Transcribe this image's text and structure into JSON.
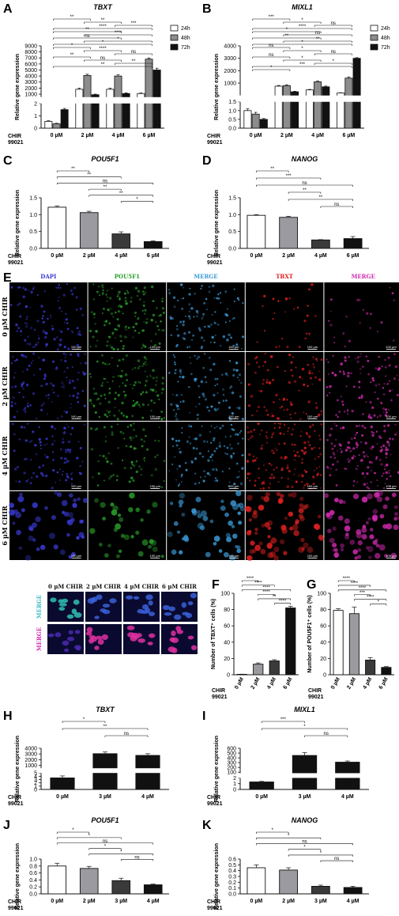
{
  "panel_letters": [
    "A",
    "B",
    "C",
    "D",
    "E",
    "F",
    "G",
    "H",
    "I",
    "J",
    "K"
  ],
  "microscopy": {
    "channels": [
      {
        "name": "DAPI",
        "color": "#3a3ad8"
      },
      {
        "name": "POU5F1",
        "color": "#2aa02a"
      },
      {
        "name": "MERGE",
        "color": "#3a9ad8"
      },
      {
        "name": "TBXT",
        "color": "#e02020"
      },
      {
        "name": "MERGE",
        "color": "#d02ab0"
      }
    ],
    "rows": [
      "0 µM CHIR",
      "2 µM CHIR",
      "4 µM CHIR",
      "6 µM CHIR"
    ],
    "scale_bar": "100 µm",
    "zoom_columns": [
      "0 µM CHIR",
      "2 µM CHIR",
      "4 µM CHIR",
      "6 µM CHIR"
    ],
    "zoom_rows": [
      {
        "name": "MERGE",
        "color": "#3ab8c8"
      },
      {
        "name": "MERGE",
        "color": "#d02ab0"
      }
    ]
  },
  "chart_data": [
    {
      "panel": "A",
      "type": "bar",
      "title": "TBXT",
      "ylabel": "Relative gene expression",
      "chir_label": [
        "CHIR",
        "99021"
      ],
      "categories": [
        "0 µM",
        "2 µM",
        "4 µM",
        "6 µM"
      ],
      "legend": [
        "24h",
        "48h",
        "72h"
      ],
      "series_colors": [
        "#ffffff",
        "#8c8c8c",
        "#111111"
      ],
      "series": [
        {
          "name": "24h",
          "values": [
            0.55,
            1800,
            1800,
            1100
          ],
          "errors": [
            0.05,
            200,
            200,
            100
          ]
        },
        {
          "name": "48h",
          "values": [
            0.35,
            4100,
            4000,
            6800
          ],
          "errors": [
            0.05,
            200,
            200,
            200
          ]
        },
        {
          "name": "72h",
          "values": [
            1.5,
            900,
            1100,
            5000
          ],
          "errors": [
            0.1,
            100,
            100,
            300
          ]
        }
      ],
      "ylim": [
        0,
        9000
      ],
      "axis_break": {
        "low": [
          0,
          2
        ],
        "low_ticks": [
          0,
          1,
          2
        ],
        "high": [
          500,
          9000
        ],
        "high_ticks": [
          1000,
          2000,
          3000,
          4000,
          5000,
          6000,
          7000,
          8000,
          9000
        ]
      },
      "significance": [
        "**",
        "**",
        "***",
        "****",
        "**",
        "****",
        "ns",
        "*",
        "*",
        "*",
        "****",
        "ns",
        "**",
        "ns",
        "**",
        "**"
      ]
    },
    {
      "panel": "B",
      "type": "bar",
      "title": "MIXL1",
      "ylabel": "Relative gene expression",
      "chir_label": [
        "CHIR",
        "99021"
      ],
      "categories": [
        "0 µM",
        "2 µM",
        "4 µM",
        "6 µM"
      ],
      "legend": [
        "24h",
        "48h",
        "72h"
      ],
      "series_colors": [
        "#ffffff",
        "#8c8c8c",
        "#111111"
      ],
      "series": [
        {
          "name": "24h",
          "values": [
            1.0,
            750,
            450,
            200
          ],
          "errors": [
            0.1,
            60,
            40,
            20
          ]
        },
        {
          "name": "48h",
          "values": [
            0.8,
            800,
            1100,
            1400
          ],
          "errors": [
            0.1,
            60,
            80,
            100
          ]
        },
        {
          "name": "72h",
          "values": [
            0.5,
            300,
            700,
            3000
          ],
          "errors": [
            0.05,
            40,
            60,
            50
          ]
        }
      ],
      "ylim": [
        0,
        4000
      ],
      "axis_break": {
        "low": [
          0,
          1.5
        ],
        "low_ticks": [
          0.0,
          0.5,
          1.0,
          1.5
        ],
        "high": [
          0,
          4000
        ],
        "high_ticks": [
          1000,
          2000,
          3000,
          4000
        ]
      },
      "significance": [
        "***",
        "*",
        "ns",
        "****",
        "*",
        "ns",
        "**",
        "**",
        "*",
        "ns",
        "*",
        "ns",
        "ns",
        "*",
        "*",
        "***",
        "*"
      ]
    },
    {
      "panel": "C",
      "type": "bar",
      "title": "POU5F1",
      "ylabel": "Relative gene expression",
      "chir_label": [
        "CHIR",
        "99021"
      ],
      "categories": [
        "0 µM",
        "2 µM",
        "4 µM",
        "6 µM"
      ],
      "values": [
        1.22,
        1.06,
        0.43,
        0.2
      ],
      "errors": [
        0.04,
        0.04,
        0.06,
        0.02
      ],
      "bar_colors": [
        "#ffffff",
        "#9a9aa0",
        "#3a3a3a",
        "#111111"
      ],
      "ylim": [
        0,
        1.5
      ],
      "yticks": [
        0.0,
        0.5,
        1.0,
        1.5
      ],
      "significance": [
        "**",
        "**",
        "ns",
        "**",
        "**",
        "*"
      ]
    },
    {
      "panel": "D",
      "type": "bar",
      "title": "NANOG",
      "ylabel": "Relative gene expression",
      "chir_label": [
        "CHIR",
        "99021"
      ],
      "categories": [
        "0 µM",
        "2 µM",
        "4 µM",
        "6 µM"
      ],
      "values": [
        0.98,
        0.92,
        0.25,
        0.29
      ],
      "errors": [
        0.02,
        0.03,
        0.01,
        0.06
      ],
      "bar_colors": [
        "#ffffff",
        "#9a9aa0",
        "#3a3a3a",
        "#111111"
      ],
      "ylim": [
        0,
        1.5
      ],
      "yticks": [
        0.0,
        0.5,
        1.0,
        1.5
      ],
      "significance": [
        "**",
        "***",
        "ns",
        "**",
        "**",
        "ns"
      ]
    },
    {
      "panel": "F",
      "type": "bar",
      "ylabel": "Number of TBXT⁺ cells (%)",
      "chir_label": [
        "CHIR",
        "99021"
      ],
      "categories": [
        "0 µM",
        "2 µM",
        "4 µM",
        "6 µM"
      ],
      "values": [
        0.5,
        13,
        17,
        82
      ],
      "errors": [
        0.2,
        1.5,
        1.5,
        2
      ],
      "bar_colors": [
        "#ffffff",
        "#9a9aa0",
        "#3a3a3a",
        "#111111"
      ],
      "ylim": [
        0,
        100
      ],
      "yticks": [
        0,
        20,
        40,
        60,
        80,
        100
      ],
      "significance": [
        "****",
        "****",
        "****",
        "****",
        "**",
        "****"
      ]
    },
    {
      "panel": "G",
      "type": "bar",
      "ylabel": "Number of POU5F1⁺ cells (%)",
      "chir_label": [
        "CHIR",
        "99021"
      ],
      "categories": [
        "0 µM",
        "2 µM",
        "4 µM",
        "6 µM"
      ],
      "values": [
        79,
        75,
        18,
        9
      ],
      "errors": [
        2,
        8,
        3,
        1
      ],
      "bar_colors": [
        "#ffffff",
        "#9a9aa0",
        "#3a3a3a",
        "#111111"
      ],
      "ylim": [
        0,
        100
      ],
      "yticks": [
        0,
        20,
        40,
        60,
        80,
        100
      ],
      "significance": [
        "****",
        "****",
        "****",
        "***",
        "****",
        "*"
      ]
    },
    {
      "panel": "H",
      "type": "bar",
      "title": "TBXT",
      "ylabel": "Relative gene expression",
      "chir_label": [
        "CHIR",
        "99021"
      ],
      "categories": [
        "0 µM",
        "3 µM",
        "4 µM"
      ],
      "values": [
        3.5,
        3050,
        2750
      ],
      "errors": [
        0.6,
        300,
        300
      ],
      "bar_colors": [
        "#111111",
        "#111111",
        "#111111"
      ],
      "ylim": [
        0,
        4000
      ],
      "axis_break": {
        "low": [
          0,
          5
        ],
        "low_ticks": [
          0,
          1,
          2,
          3,
          4,
          5
        ],
        "high": [
          500,
          4000
        ],
        "high_ticks": [
          1000,
          2000,
          3000,
          4000
        ]
      },
      "significance": [
        "*",
        "**",
        "ns"
      ]
    },
    {
      "panel": "I",
      "type": "bar",
      "title": "MIXL1",
      "ylabel": "Relative gene expression",
      "chir_label": [
        "CHIR",
        "99021"
      ],
      "categories": [
        "0 µM",
        "3 µM",
        "4 µM"
      ],
      "values": [
        1.3,
        450,
        310
      ],
      "errors": [
        0.1,
        60,
        25
      ],
      "bar_colors": [
        "#111111",
        "#111111",
        "#111111"
      ],
      "ylim": [
        0,
        600
      ],
      "axis_break": {
        "low": [
          0,
          2
        ],
        "low_ticks": [
          0,
          1,
          2
        ],
        "high": [
          80,
          600
        ],
        "high_ticks": [
          100,
          200,
          300,
          400,
          500,
          600
        ]
      },
      "significance": [
        "***",
        "*",
        "ns"
      ]
    },
    {
      "panel": "J",
      "type": "bar",
      "title": "POU5F1",
      "ylabel": "Relative gene expression",
      "chir_label": [
        "CHIR",
        "99021"
      ],
      "categories": [
        "0 µM",
        "2 µM",
        "3 µM",
        "4 µM"
      ],
      "values": [
        0.8,
        0.73,
        0.38,
        0.26
      ],
      "errors": [
        0.08,
        0.06,
        0.07,
        0.02
      ],
      "bar_colors": [
        "#ffffff",
        "#9a9aa0",
        "#3a3a3a",
        "#111111"
      ],
      "ylim": [
        0,
        1.0
      ],
      "yticks": [
        0.0,
        0.2,
        0.4,
        0.6,
        0.8,
        1.0
      ],
      "significance": [
        "*",
        "*",
        "ns",
        "*",
        "*",
        "ns"
      ]
    },
    {
      "panel": "K",
      "type": "bar",
      "title": "NANOG",
      "ylabel": "Relative gene expression",
      "chir_label": [
        "CHIR",
        "99021"
      ],
      "categories": [
        "0 µM",
        "2 µM",
        "3 µM",
        "4 µM"
      ],
      "values": [
        0.45,
        0.41,
        0.13,
        0.11
      ],
      "errors": [
        0.05,
        0.04,
        0.02,
        0.02
      ],
      "bar_colors": [
        "#ffffff",
        "#9a9aa0",
        "#3a3a3a",
        "#111111"
      ],
      "ylim": [
        0,
        0.6
      ],
      "yticks": [
        0.0,
        0.1,
        0.2,
        0.3,
        0.4,
        0.5,
        0.6
      ],
      "significance": [
        "*",
        "*",
        "ns",
        "*",
        "*",
        "ns"
      ]
    }
  ]
}
